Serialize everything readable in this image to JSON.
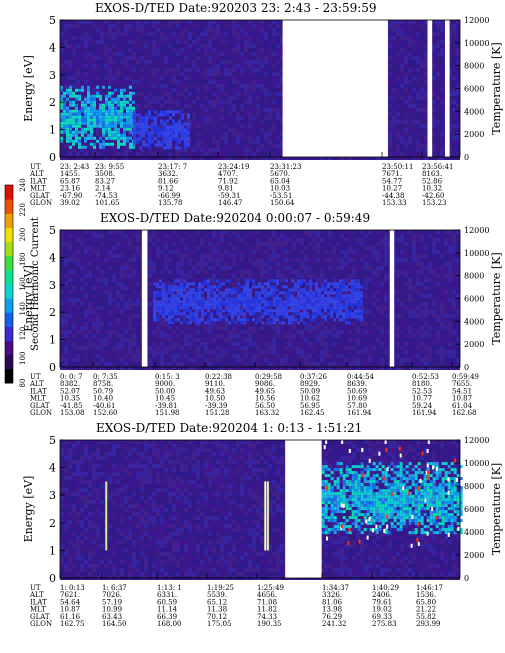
{
  "colors": {
    "background": "#3a1a86",
    "colorbar": [
      "#000000",
      "#2a0a50",
      "#4a0c82",
      "#3a2ad0",
      "#1460e8",
      "#0aa0f0",
      "#0ad6d0",
      "#0ae090",
      "#3ae040",
      "#a0e010",
      "#f0e000",
      "#f0a000",
      "#f05000",
      "#e01000"
    ]
  },
  "colorbar": {
    "label": "Second Harmonic Current",
    "ticks": [
      "80",
      "100",
      "120",
      "140",
      "160",
      "180",
      "200",
      "220",
      "240"
    ]
  },
  "chart_data": [
    {
      "type": "heatmap",
      "title": "EXOS-D/TED   Date:920203  23: 2:43 - 23:59:59",
      "ylabel": "Energy [eV]",
      "y2label": "Temperature [K]",
      "ylim": [
        0,
        5
      ],
      "y2lim": [
        0,
        12000
      ],
      "yticks": [
        "0",
        "1",
        "2",
        "3",
        "4",
        "5"
      ],
      "y2ticks": [
        "0",
        "2000",
        "4000",
        "6000",
        "8000",
        "10000",
        "12000"
      ],
      "time_range": [
        "23:02:43",
        "23:59:59"
      ],
      "gaps": [
        [
          "23:34:35",
          "23:49:40"
        ],
        [
          "23:55:20",
          "23:56:00"
        ],
        [
          "23:57:50",
          "23:58:30"
        ]
      ],
      "enhancements": [
        {
          "start": "23:02:43",
          "end": "23:13:10",
          "emin": 0.4,
          "emax": 2.6,
          "level": "high"
        },
        {
          "start": "23:13:10",
          "end": "23:21:10",
          "emin": 0.3,
          "emax": 1.7,
          "level": "medium"
        }
      ],
      "rows": [
        {
          "label": "UT",
          "values": [
            "23: 2:43",
            "23: 9:55",
            "23:17: 7",
            "23:24:19",
            "23:31:23",
            "23:50:11",
            "23:56:41"
          ]
        },
        {
          "label": "ALT",
          "values": [
            "1455.",
            "3508.",
            "3632.",
            "4707.",
            "5670.",
            "7671.",
            "8163."
          ]
        },
        {
          "label": "ILAT",
          "values": [
            "65.87",
            "83.27",
            "81.66",
            "71.92",
            "65.04",
            "54.77",
            "52.86"
          ]
        },
        {
          "label": "MLT",
          "values": [
            "23.16",
            "2.14",
            "9.12",
            "9.81",
            "10.03",
            "10.27",
            "10.32"
          ]
        },
        {
          "label": "GLAT",
          "values": [
            "-67.90",
            "-74.53",
            "-66.99",
            "-59.31",
            "-53.51",
            "-44.38",
            "-42.60"
          ]
        },
        {
          "label": "GLON",
          "values": [
            "39.02",
            "101.65",
            "135.78",
            "146.47",
            "150.64",
            "153.33",
            "153.23"
          ]
        }
      ]
    },
    {
      "type": "heatmap",
      "title": "EXOS-D/TED   Date:920204   0:00:07 - 0:59:49",
      "ylabel": "Energy [eV]",
      "y2label": "Temperature [K]",
      "ylim": [
        0,
        5
      ],
      "y2lim": [
        0,
        12000
      ],
      "yticks": [
        "0",
        "1",
        "2",
        "3",
        "4",
        "5"
      ],
      "y2ticks": [
        "0",
        "2000",
        "4000",
        "6000",
        "8000",
        "10000",
        "12000"
      ],
      "time_range": [
        "0:00:07",
        "0:59:49"
      ],
      "gaps": [
        [
          "0:12:20",
          "0:13:10"
        ],
        [
          "0:49:20",
          "0:50:00"
        ]
      ],
      "enhancements": [
        {
          "start": "0:14:00",
          "end": "0:45:00",
          "emin": 1.6,
          "emax": 3.2,
          "level": "medium"
        }
      ],
      "rows": [
        {
          "label": "UT",
          "values": [
            "0: 0: 7",
            "0: 7:35",
            "0:15: 3",
            "0:22:38",
            "0:29:58",
            "0:37:26",
            "0:44:54",
            "0:52:53",
            "0:59:49"
          ]
        },
        {
          "label": "ALT",
          "values": [
            "8382.",
            "8758.",
            "9000.",
            "9110.",
            "9086.",
            "8929.",
            "8639.",
            "8180.",
            "7655."
          ]
        },
        {
          "label": "ILAT",
          "values": [
            "52.07",
            "50.79",
            "50.00",
            "49.63",
            "49.65",
            "50.09",
            "50.69",
            "52.53",
            "54.51"
          ]
        },
        {
          "label": "MLT",
          "values": [
            "10.35",
            "10.40",
            "10.45",
            "10.50",
            "10.56",
            "10.62",
            "10.69",
            "10.77",
            "10.87"
          ]
        },
        {
          "label": "GLAT",
          "values": [
            "-41.85",
            "-40.61",
            "-39.81",
            "-39.39",
            "56.50",
            "56.95",
            "57.80",
            "59.24",
            "61.04"
          ]
        },
        {
          "label": "GLON",
          "values": [
            "153.08",
            "152.60",
            "151.98",
            "151.28",
            "163.32",
            "162.45",
            "161.94",
            "161.94",
            "162.68"
          ]
        }
      ]
    },
    {
      "type": "heatmap",
      "title": "EXOS-D/TED   Date:920204   1: 0:13 - 1:51:21",
      "ylabel": "Energy [eV]",
      "y2label": "Temperature [K]",
      "ylim": [
        0,
        5
      ],
      "y2lim": [
        0,
        12000
      ],
      "yticks": [
        "0",
        "1",
        "2",
        "3",
        "4",
        "5"
      ],
      "y2ticks": [
        "0",
        "2000",
        "4000",
        "6000",
        "8000",
        "10000",
        "12000"
      ],
      "time_range": [
        "1:00:13",
        "1:51:21"
      ],
      "gaps": [
        [
          "1:29:00",
          "1:33:40"
        ]
      ],
      "enhancements": [
        {
          "start": "1:33:40",
          "end": "1:51:21",
          "emin": 1.6,
          "emax": 4.2,
          "level": "high"
        }
      ],
      "rows": [
        {
          "label": "UT",
          "values": [
            "1: 0:13",
            "1: 6:37",
            "1:13: 1",
            "1:19:25",
            "1:25:49",
            "1:34:37",
            "1:40:29",
            "1:46:17"
          ]
        },
        {
          "label": "ALT",
          "values": [
            "7621.",
            "7026.",
            "6331.",
            "5539.",
            "4656.",
            "3326.",
            "2406.",
            "1536."
          ]
        },
        {
          "label": "ILAT",
          "values": [
            "54.64",
            "57.19",
            "60.59",
            "65.12",
            "71.08",
            "81.06",
            "79.61",
            "65.80"
          ]
        },
        {
          "label": "MLT",
          "values": [
            "10.87",
            "10.99",
            "11.14",
            "11.38",
            "11.82",
            "13.98",
            "19.02",
            "21.22"
          ]
        },
        {
          "label": "GLAT",
          "values": [
            "61.16",
            "63.43",
            "66.39",
            "70.12",
            "74.33",
            "76.29",
            "69.33",
            "55.82"
          ]
        },
        {
          "label": "GLON",
          "values": [
            "162.75",
            "164.50",
            "168.00",
            "175.05",
            "190.35",
            "241.32",
            "275.83",
            "293.99"
          ]
        }
      ]
    }
  ]
}
